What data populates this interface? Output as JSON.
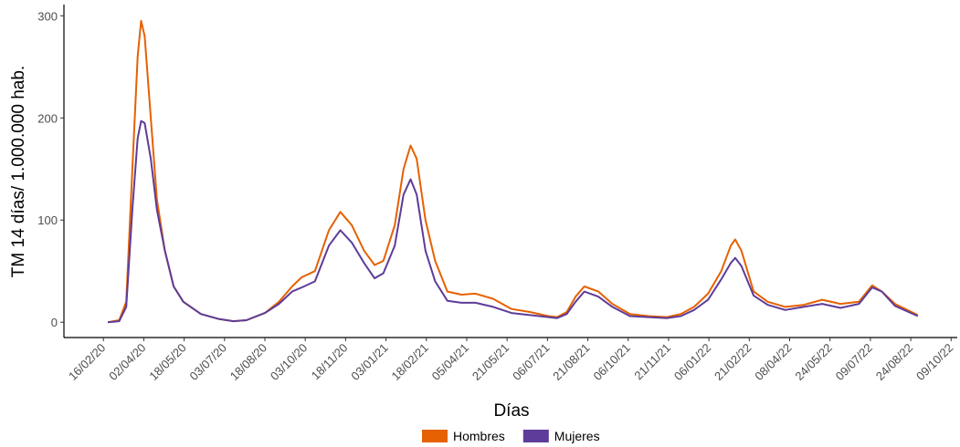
{
  "chart_data": {
    "type": "line",
    "y_label": "TM 14 días/ 1.000.000 hab.",
    "x_label": "Días",
    "x": [
      "2020-02-21",
      "2020-03-05",
      "2020-03-13",
      "2020-03-20",
      "2020-03-26",
      "2020-03-30",
      "2020-04-03",
      "2020-04-10",
      "2020-04-17",
      "2020-04-26",
      "2020-05-06",
      "2020-05-17",
      "2020-06-06",
      "2020-06-27",
      "2020-07-13",
      "2020-07-28",
      "2020-08-18",
      "2020-09-03",
      "2020-09-18",
      "2020-09-29",
      "2020-10-14",
      "2020-10-30",
      "2020-11-12",
      "2020-11-25",
      "2020-12-09",
      "2020-12-21",
      "2020-12-31",
      "2021-01-13",
      "2021-01-23",
      "2021-01-31",
      "2021-02-07",
      "2021-02-17",
      "2021-02-28",
      "2021-03-14",
      "2021-03-30",
      "2021-04-15",
      "2021-05-05",
      "2021-05-26",
      "2021-06-16",
      "2021-07-07",
      "2021-07-17",
      "2021-07-28",
      "2021-08-07",
      "2021-08-17",
      "2021-09-02",
      "2021-09-18",
      "2021-10-08",
      "2021-10-29",
      "2021-11-19",
      "2021-12-05",
      "2021-12-20",
      "2022-01-05",
      "2022-01-20",
      "2022-01-31",
      "2022-02-05",
      "2022-02-12",
      "2022-02-26",
      "2022-03-14",
      "2022-04-03",
      "2022-04-24",
      "2022-05-15",
      "2022-06-05",
      "2022-06-26",
      "2022-07-11",
      "2022-07-22",
      "2022-08-06",
      "2022-09-01"
    ],
    "series": [
      {
        "name": "Hombres",
        "color": "#e66101",
        "values": [
          0,
          2,
          20,
          150,
          260,
          295,
          280,
          200,
          120,
          70,
          35,
          20,
          8,
          3,
          1,
          2,
          9,
          20,
          35,
          44,
          50,
          90,
          108,
          95,
          70,
          56,
          60,
          95,
          150,
          173,
          160,
          100,
          60,
          30,
          27,
          28,
          23,
          13,
          10,
          6,
          5,
          10,
          25,
          35,
          30,
          18,
          8,
          6,
          5,
          8,
          15,
          28,
          50,
          75,
          81,
          70,
          30,
          20,
          15,
          17,
          22,
          18,
          20,
          36,
          30,
          18,
          7
        ]
      },
      {
        "name": "Mujeres",
        "color": "#5e3c99",
        "values": [
          0,
          1,
          15,
          110,
          180,
          197,
          195,
          160,
          110,
          70,
          35,
          20,
          8,
          3,
          1,
          2,
          9,
          18,
          30,
          34,
          40,
          75,
          90,
          78,
          58,
          43,
          48,
          75,
          125,
          140,
          125,
          70,
          40,
          21,
          19,
          19,
          15,
          9,
          7,
          5,
          4,
          8,
          20,
          30,
          25,
          15,
          6,
          5,
          4,
          6,
          12,
          22,
          42,
          58,
          63,
          55,
          26,
          17,
          12,
          15,
          18,
          14,
          18,
          34,
          30,
          16,
          6
        ]
      }
    ],
    "xlim": [
      "2020-01-02",
      "2022-10-16"
    ],
    "xticks": [
      {
        "value": "2020-02-16",
        "label": "16/02/20"
      },
      {
        "value": "2020-04-02",
        "label": "02/04/20"
      },
      {
        "value": "2020-05-18",
        "label": "18/05/20"
      },
      {
        "value": "2020-07-03",
        "label": "03/07/20"
      },
      {
        "value": "2020-08-18",
        "label": "18/08/20"
      },
      {
        "value": "2020-10-03",
        "label": "03/10/20"
      },
      {
        "value": "2020-11-18",
        "label": "18/11/20"
      },
      {
        "value": "2021-01-03",
        "label": "03/01/21"
      },
      {
        "value": "2021-02-18",
        "label": "18/02/21"
      },
      {
        "value": "2021-04-05",
        "label": "05/04/21"
      },
      {
        "value": "2021-05-21",
        "label": "21/05/21"
      },
      {
        "value": "2021-07-06",
        "label": "06/07/21"
      },
      {
        "value": "2021-08-21",
        "label": "21/08/21"
      },
      {
        "value": "2021-10-06",
        "label": "06/10/21"
      },
      {
        "value": "2021-11-21",
        "label": "21/11/21"
      },
      {
        "value": "2022-01-06",
        "label": "06/01/22"
      },
      {
        "value": "2022-02-21",
        "label": "21/02/22"
      },
      {
        "value": "2022-04-08",
        "label": "08/04/22"
      },
      {
        "value": "2022-05-24",
        "label": "24/05/22"
      },
      {
        "value": "2022-07-09",
        "label": "09/07/22"
      },
      {
        "value": "2022-08-24",
        "label": "24/08/22"
      },
      {
        "value": "2022-10-09",
        "label": "09/10/22"
      }
    ],
    "ylim": [
      -15,
      311
    ],
    "yticks": [
      0,
      100,
      200,
      300
    ],
    "grid": false
  }
}
